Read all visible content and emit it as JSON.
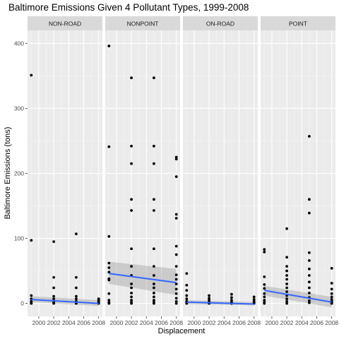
{
  "chart_data": {
    "type": "scatter",
    "title": "Baltimore Emissions Given 4 Pollutant Types, 1999-2008",
    "xlabel": "Displacement",
    "ylabel": "Baltimore Emissions (tons)",
    "xlim": [
      1998.5,
      2008.5
    ],
    "ylim": [
      -20,
      420
    ],
    "x_ticks": [
      2000,
      2002,
      2004,
      2006,
      2008
    ],
    "x_tick_labels": [
      "2000",
      "2002",
      "2004",
      "2006",
      "2008"
    ],
    "y_ticks": [
      0,
      100,
      200,
      300,
      400
    ],
    "y_tick_labels": [
      "0",
      "100",
      "200",
      "300",
      "400"
    ],
    "grid": true,
    "panel_background": "#ebebeb",
    "strip_background": "#d9d9d9",
    "point_color": "#000000",
    "trend_color": "#3366ff",
    "band_color": "#999999",
    "facets": [
      {
        "name": "NON-ROAD",
        "points": [
          {
            "x": 1999,
            "y": 351
          },
          {
            "x": 1999,
            "y": 97
          },
          {
            "x": 1999,
            "y": 12
          },
          {
            "x": 1999,
            "y": 7
          },
          {
            "x": 1999,
            "y": 3
          },
          {
            "x": 1999,
            "y": 1
          },
          {
            "x": 1999,
            "y": 0
          },
          {
            "x": 2002,
            "y": 95
          },
          {
            "x": 2002,
            "y": 40
          },
          {
            "x": 2002,
            "y": 24
          },
          {
            "x": 2002,
            "y": 11
          },
          {
            "x": 2002,
            "y": 7
          },
          {
            "x": 2002,
            "y": 3
          },
          {
            "x": 2002,
            "y": 1
          },
          {
            "x": 2002,
            "y": 0
          },
          {
            "x": 2005,
            "y": 107
          },
          {
            "x": 2005,
            "y": 40
          },
          {
            "x": 2005,
            "y": 24
          },
          {
            "x": 2005,
            "y": 11
          },
          {
            "x": 2005,
            "y": 7
          },
          {
            "x": 2005,
            "y": 3
          },
          {
            "x": 2005,
            "y": 1
          },
          {
            "x": 2005,
            "y": 0
          },
          {
            "x": 2008,
            "y": 7
          },
          {
            "x": 2008,
            "y": 5
          },
          {
            "x": 2008,
            "y": 3
          },
          {
            "x": 2008,
            "y": 1
          },
          {
            "x": 2008,
            "y": 0
          }
        ],
        "trend": {
          "x1": 1999,
          "y1": 6,
          "x2": 2008,
          "y2": 0
        },
        "band": {
          "x1": 1999,
          "lo1": 2,
          "hi1": 11,
          "x2": 2008,
          "lo2": -4,
          "hi2": 5
        }
      },
      {
        "name": "NONPOINT",
        "points": [
          {
            "x": 1999,
            "y": 396
          },
          {
            "x": 1999,
            "y": 241
          },
          {
            "x": 1999,
            "y": 103
          },
          {
            "x": 1999,
            "y": 62
          },
          {
            "x": 1999,
            "y": 55
          },
          {
            "x": 1999,
            "y": 48
          },
          {
            "x": 1999,
            "y": 38
          },
          {
            "x": 1999,
            "y": 36
          },
          {
            "x": 1999,
            "y": 15
          },
          {
            "x": 1999,
            "y": 5
          },
          {
            "x": 1999,
            "y": 2
          },
          {
            "x": 1999,
            "y": 0
          },
          {
            "x": 2002,
            "y": 347
          },
          {
            "x": 2002,
            "y": 242
          },
          {
            "x": 2002,
            "y": 215
          },
          {
            "x": 2002,
            "y": 160
          },
          {
            "x": 2002,
            "y": 143
          },
          {
            "x": 2002,
            "y": 84
          },
          {
            "x": 2002,
            "y": 57
          },
          {
            "x": 2002,
            "y": 43
          },
          {
            "x": 2002,
            "y": 30
          },
          {
            "x": 2002,
            "y": 24
          },
          {
            "x": 2002,
            "y": 16
          },
          {
            "x": 2002,
            "y": 10
          },
          {
            "x": 2002,
            "y": 5
          },
          {
            "x": 2002,
            "y": 2
          },
          {
            "x": 2002,
            "y": 0
          },
          {
            "x": 2005,
            "y": 347
          },
          {
            "x": 2005,
            "y": 242
          },
          {
            "x": 2005,
            "y": 215
          },
          {
            "x": 2005,
            "y": 160
          },
          {
            "x": 2005,
            "y": 143
          },
          {
            "x": 2005,
            "y": 84
          },
          {
            "x": 2005,
            "y": 57
          },
          {
            "x": 2005,
            "y": 43
          },
          {
            "x": 2005,
            "y": 30
          },
          {
            "x": 2005,
            "y": 24
          },
          {
            "x": 2005,
            "y": 16
          },
          {
            "x": 2005,
            "y": 10
          },
          {
            "x": 2005,
            "y": 5
          },
          {
            "x": 2005,
            "y": 2
          },
          {
            "x": 2005,
            "y": 0
          },
          {
            "x": 2008,
            "y": 225
          },
          {
            "x": 2008,
            "y": 222
          },
          {
            "x": 2008,
            "y": 195
          },
          {
            "x": 2008,
            "y": 137
          },
          {
            "x": 2008,
            "y": 131
          },
          {
            "x": 2008,
            "y": 88
          },
          {
            "x": 2008,
            "y": 75
          },
          {
            "x": 2008,
            "y": 57
          },
          {
            "x": 2008,
            "y": 44
          },
          {
            "x": 2008,
            "y": 37
          },
          {
            "x": 2008,
            "y": 30
          },
          {
            "x": 2008,
            "y": 22
          },
          {
            "x": 2008,
            "y": 15
          },
          {
            "x": 2008,
            "y": 8
          },
          {
            "x": 2008,
            "y": 3
          },
          {
            "x": 2008,
            "y": 0
          }
        ],
        "trend": {
          "x1": 1999,
          "y1": 46,
          "x2": 2008,
          "y2": 32
        },
        "band": {
          "x1": 1999,
          "lo1": 30,
          "hi1": 64,
          "x2": 2008,
          "lo2": 13,
          "hi2": 53
        }
      },
      {
        "name": "ON-ROAD",
        "points": [
          {
            "x": 1999,
            "y": 46
          },
          {
            "x": 1999,
            "y": 28
          },
          {
            "x": 1999,
            "y": 20
          },
          {
            "x": 1999,
            "y": 12
          },
          {
            "x": 1999,
            "y": 7
          },
          {
            "x": 1999,
            "y": 3
          },
          {
            "x": 1999,
            "y": 1
          },
          {
            "x": 1999,
            "y": 0
          },
          {
            "x": 2002,
            "y": 12
          },
          {
            "x": 2002,
            "y": 8
          },
          {
            "x": 2002,
            "y": 5
          },
          {
            "x": 2002,
            "y": 2
          },
          {
            "x": 2002,
            "y": 0
          },
          {
            "x": 2005,
            "y": 14
          },
          {
            "x": 2005,
            "y": 9
          },
          {
            "x": 2005,
            "y": 5
          },
          {
            "x": 2005,
            "y": 2
          },
          {
            "x": 2005,
            "y": 0
          },
          {
            "x": 2008,
            "y": 10
          },
          {
            "x": 2008,
            "y": 6
          },
          {
            "x": 2008,
            "y": 3
          },
          {
            "x": 2008,
            "y": 1
          },
          {
            "x": 2008,
            "y": 0
          }
        ],
        "trend": {
          "x1": 1999,
          "y1": 2,
          "x2": 2008,
          "y2": -1
        },
        "band": {
          "x1": 1999,
          "lo1": -1,
          "hi1": 5,
          "x2": 2008,
          "lo2": -3,
          "hi2": 2
        }
      },
      {
        "name": "POINT",
        "points": [
          {
            "x": 1999,
            "y": 83
          },
          {
            "x": 1999,
            "y": 79
          },
          {
            "x": 1999,
            "y": 41
          },
          {
            "x": 1999,
            "y": 29
          },
          {
            "x": 1999,
            "y": 23
          },
          {
            "x": 1999,
            "y": 15
          },
          {
            "x": 1999,
            "y": 10
          },
          {
            "x": 1999,
            "y": 5
          },
          {
            "x": 1999,
            "y": 2
          },
          {
            "x": 1999,
            "y": 0
          },
          {
            "x": 2002,
            "y": 115
          },
          {
            "x": 2002,
            "y": 71
          },
          {
            "x": 2002,
            "y": 57
          },
          {
            "x": 2002,
            "y": 50
          },
          {
            "x": 2002,
            "y": 43
          },
          {
            "x": 2002,
            "y": 37
          },
          {
            "x": 2002,
            "y": 30
          },
          {
            "x": 2002,
            "y": 24
          },
          {
            "x": 2002,
            "y": 18
          },
          {
            "x": 2002,
            "y": 12
          },
          {
            "x": 2002,
            "y": 7
          },
          {
            "x": 2002,
            "y": 3
          },
          {
            "x": 2002,
            "y": 0
          },
          {
            "x": 2005,
            "y": 257
          },
          {
            "x": 2005,
            "y": 160
          },
          {
            "x": 2005,
            "y": 139
          },
          {
            "x": 2005,
            "y": 78
          },
          {
            "x": 2005,
            "y": 66
          },
          {
            "x": 2005,
            "y": 53
          },
          {
            "x": 2005,
            "y": 43
          },
          {
            "x": 2005,
            "y": 33
          },
          {
            "x": 2005,
            "y": 24
          },
          {
            "x": 2005,
            "y": 16
          },
          {
            "x": 2005,
            "y": 9
          },
          {
            "x": 2005,
            "y": 4
          },
          {
            "x": 2005,
            "y": 1
          },
          {
            "x": 2008,
            "y": 54
          },
          {
            "x": 2008,
            "y": 31
          },
          {
            "x": 2008,
            "y": 22
          },
          {
            "x": 2008,
            "y": 15
          },
          {
            "x": 2008,
            "y": 10
          },
          {
            "x": 2008,
            "y": 6
          },
          {
            "x": 2008,
            "y": 3
          },
          {
            "x": 2008,
            "y": 1
          },
          {
            "x": 2008,
            "y": 0
          }
        ],
        "trend": {
          "x1": 1999,
          "y1": 20,
          "x2": 2008,
          "y2": 2
        },
        "band": {
          "x1": 1999,
          "lo1": 12,
          "hi1": 27,
          "x2": 2008,
          "lo2": -6,
          "hi2": 10
        }
      }
    ]
  }
}
